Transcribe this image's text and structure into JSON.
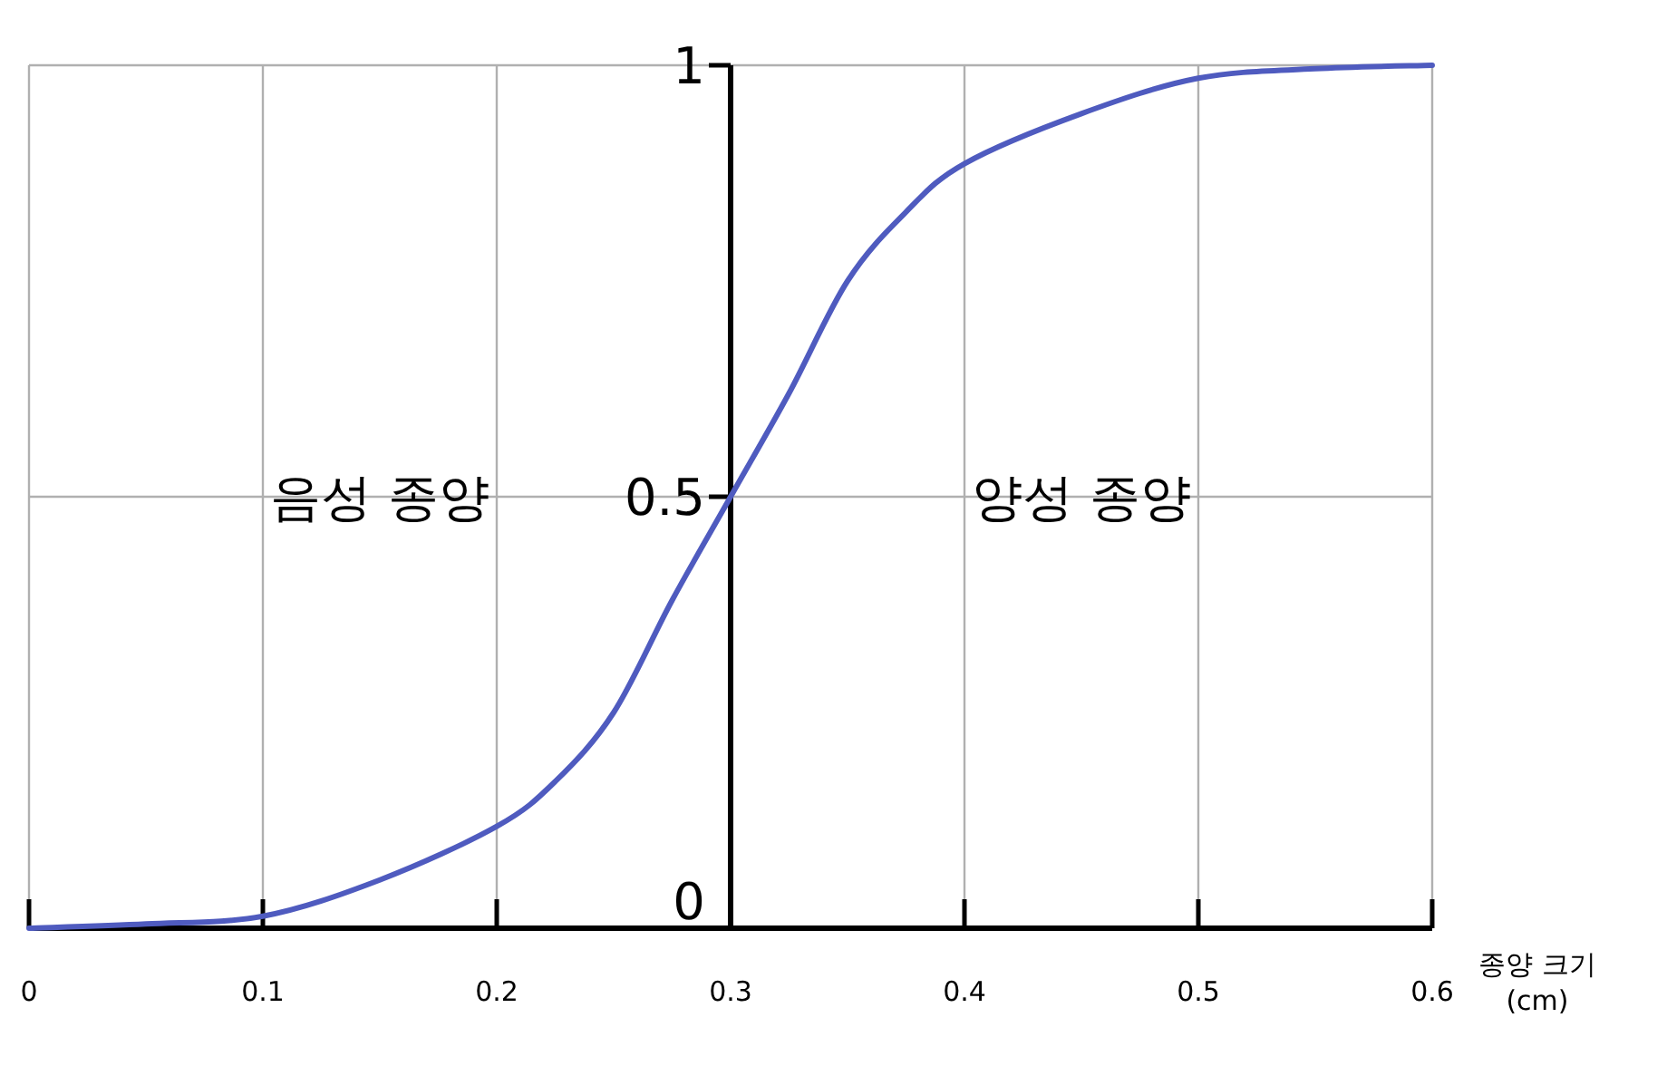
{
  "chart_data": {
    "type": "line",
    "xlabel": "종양 크기\n(cm)",
    "annotations": [
      "음성 종양",
      "양성 종양"
    ],
    "x": [
      0,
      0.05,
      0.1,
      0.15,
      0.2,
      0.225,
      0.25,
      0.275,
      0.3,
      0.325,
      0.35,
      0.375,
      0.4,
      0.45,
      0.5,
      0.55,
      0.6
    ],
    "series": [
      {
        "color": "#4f5bbf",
        "values": [
          0,
          0.005,
          0.014,
          0.056,
          0.118,
          0.17,
          0.25,
          0.38,
          0.5,
          0.62,
          0.75,
          0.83,
          0.886,
          0.944,
          0.985,
          0.996,
          1
        ]
      }
    ],
    "xlim": [
      0,
      0.6
    ],
    "ylim": [
      0,
      1
    ],
    "xticks": [
      0,
      0.1,
      0.2,
      0.3,
      0.4,
      0.5,
      0.6
    ],
    "yticks": [
      0,
      0.5,
      1
    ],
    "grid": true,
    "marker": "none",
    "line_style": "solid"
  }
}
